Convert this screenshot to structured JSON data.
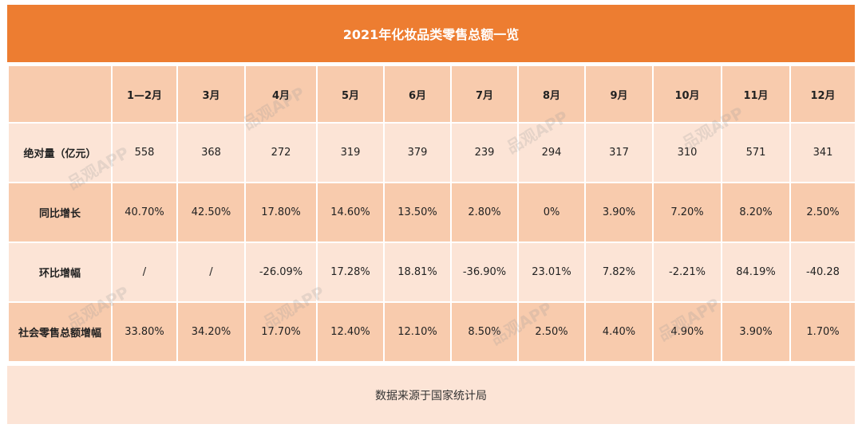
{
  "title": "2021年化妆品类零售总额一览",
  "footer": "数据来源于国家统计局",
  "watermark": "品观APP",
  "colors": {
    "header": "#ed7d31",
    "row_dark": "#f8cbad",
    "row_light": "#fce4d6"
  },
  "chart_data": {
    "type": "table",
    "title": "2021年化妆品类零售总额一览",
    "columns": [
      "1—2月",
      "3月",
      "4月",
      "5月",
      "6月",
      "7月",
      "8月",
      "9月",
      "10月",
      "11月",
      "12月"
    ],
    "rows": [
      {
        "label": "绝对量（亿元）",
        "values": [
          "558",
          "368",
          "272",
          "319",
          "379",
          "239",
          "294",
          "317",
          "310",
          "571",
          "341"
        ]
      },
      {
        "label": "同比增长",
        "values": [
          "40.70%",
          "42.50%",
          "17.80%",
          "14.60%",
          "13.50%",
          "2.80%",
          "0%",
          "3.90%",
          "7.20%",
          "8.20%",
          "2.50%"
        ]
      },
      {
        "label": "环比增幅",
        "values": [
          "/",
          "/",
          "-26.09%",
          "17.28%",
          "18.81%",
          "-36.90%",
          "23.01%",
          "7.82%",
          "-2.21%",
          "84.19%",
          "-40.28"
        ]
      },
      {
        "label": "社会零售总额增幅",
        "values": [
          "33.80%",
          "34.20%",
          "17.70%",
          "12.40%",
          "12.10%",
          "8.50%",
          "2.50%",
          "4.40%",
          "4.90%",
          "3.90%",
          "1.70%"
        ]
      }
    ]
  }
}
